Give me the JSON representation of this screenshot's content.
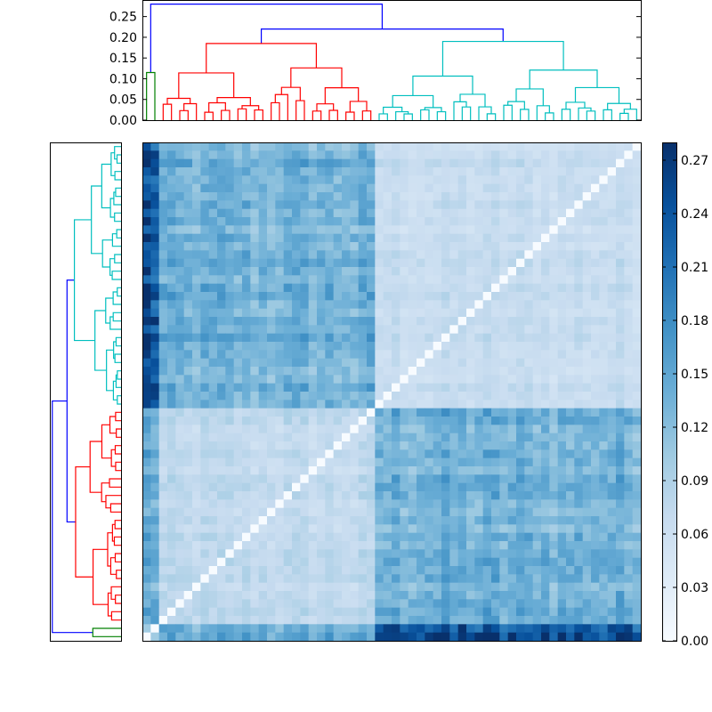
{
  "chart_data": {
    "type": "heatmap",
    "title": "",
    "description_note": "Clustered distance matrix with top and left dendrograms and a colorbar",
    "n_items": 60,
    "colormap": "Blues",
    "colorbar": {
      "range": [
        0.0,
        0.28
      ],
      "ticks": [
        0.0,
        0.03,
        0.06,
        0.09,
        0.12,
        0.15,
        0.18,
        0.21,
        0.24,
        0.27
      ],
      "tick_labels": [
        "0.00",
        "0.03",
        "0.06",
        "0.09",
        "0.12",
        "0.15",
        "0.18",
        "0.21",
        "0.24",
        "0.27"
      ]
    },
    "top_dendrogram": {
      "ylim": [
        0.0,
        0.29
      ],
      "ticks": [
        0.0,
        0.05,
        0.1,
        0.15,
        0.2,
        0.25
      ],
      "tick_labels": [
        "0.00",
        "0.05",
        "0.10",
        "0.15",
        "0.20",
        "0.25"
      ],
      "clusters": [
        {
          "name": "green",
          "color": "#008000",
          "leaves": 2,
          "root_height": 0.115
        },
        {
          "name": "red",
          "color": "#ff0000",
          "leaves": 26,
          "root_height": 0.185
        },
        {
          "name": "cyan",
          "color": "#00bfbf",
          "leaves": 32,
          "root_height": 0.19
        }
      ],
      "link_color": "#0000ff",
      "root_height": 0.28,
      "red_cyan_merge_height": 0.22
    },
    "blocks": [
      {
        "name": "green",
        "size": 2,
        "within": 0.11,
        "to_red": 0.14,
        "to_cyan": 0.24
      },
      {
        "name": "red",
        "size": 26,
        "within": 0.07
      },
      {
        "name": "cyan",
        "size": 32,
        "within": 0.065,
        "to_red": 0.13
      }
    ]
  }
}
